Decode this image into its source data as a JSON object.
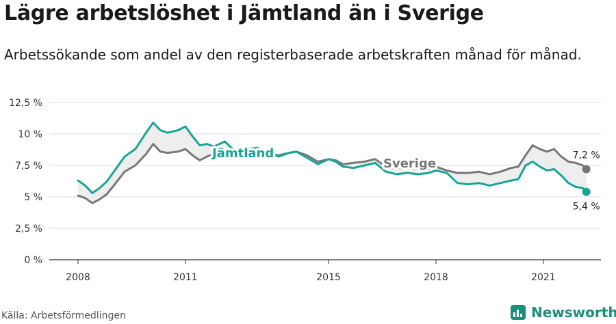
{
  "header": {
    "title": "Lägre arbetslöshet i Jämtland än i Sverige",
    "subtitle": "Arbetssökande som andel av den registerbaserade arbetskraften månad för månad."
  },
  "footer": {
    "source": "Källa: Arbetsförmedlingen",
    "brand": "Newsworthy"
  },
  "colors": {
    "jamtland": "#16a596",
    "sverige": "#777777",
    "grid": "#dddddd",
    "band": "#eeeeee"
  },
  "chart_data": {
    "type": "line",
    "xlim": [
      2008,
      2022.3
    ],
    "ylim": [
      0,
      12.5
    ],
    "yticks": [
      0,
      2.5,
      5,
      7.5,
      10,
      12.5
    ],
    "ytick_labels": [
      "0 %",
      "2,5 %",
      "5 %",
      "7,5 %",
      "10 %",
      "12,5 %"
    ],
    "xticks": [
      2008,
      2011,
      2015,
      2018,
      2021
    ],
    "xtick_labels": [
      "2008",
      "2011",
      "2015",
      "2018",
      "2021"
    ],
    "grid": true,
    "series": [
      {
        "name": "Jämtland",
        "end_label": "5,4 %",
        "points": [
          [
            2008.0,
            6.3
          ],
          [
            2008.2,
            5.9
          ],
          [
            2008.4,
            5.3
          ],
          [
            2008.6,
            5.7
          ],
          [
            2008.8,
            6.2
          ],
          [
            2009.0,
            7.0
          ],
          [
            2009.3,
            8.2
          ],
          [
            2009.6,
            8.8
          ],
          [
            2009.9,
            10.1
          ],
          [
            2010.1,
            10.9
          ],
          [
            2010.3,
            10.3
          ],
          [
            2010.5,
            10.1
          ],
          [
            2010.8,
            10.3
          ],
          [
            2011.0,
            10.6
          ],
          [
            2011.2,
            9.8
          ],
          [
            2011.4,
            9.1
          ],
          [
            2011.6,
            9.2
          ],
          [
            2011.8,
            9.0
          ],
          [
            2012.1,
            9.4
          ],
          [
            2012.4,
            8.6
          ],
          [
            2012.7,
            8.8
          ],
          [
            2013.0,
            8.9
          ],
          [
            2013.3,
            8.6
          ],
          [
            2013.6,
            8.2
          ],
          [
            2013.9,
            8.5
          ],
          [
            2014.1,
            8.6
          ],
          [
            2014.4,
            8.1
          ],
          [
            2014.7,
            7.6
          ],
          [
            2015.0,
            8.0
          ],
          [
            2015.2,
            7.8
          ],
          [
            2015.4,
            7.4
          ],
          [
            2015.7,
            7.3
          ],
          [
            2016.0,
            7.5
          ],
          [
            2016.3,
            7.7
          ],
          [
            2016.6,
            7.0
          ],
          [
            2016.9,
            6.8
          ],
          [
            2017.2,
            6.9
          ],
          [
            2017.5,
            6.8
          ],
          [
            2017.8,
            6.9
          ],
          [
            2018.0,
            7.1
          ],
          [
            2018.3,
            6.9
          ],
          [
            2018.6,
            6.1
          ],
          [
            2018.9,
            6.0
          ],
          [
            2019.2,
            6.1
          ],
          [
            2019.5,
            5.9
          ],
          [
            2019.8,
            6.1
          ],
          [
            2020.1,
            6.3
          ],
          [
            2020.3,
            6.4
          ],
          [
            2020.5,
            7.5
          ],
          [
            2020.7,
            7.8
          ],
          [
            2020.9,
            7.4
          ],
          [
            2021.1,
            7.1
          ],
          [
            2021.3,
            7.2
          ],
          [
            2021.5,
            6.7
          ],
          [
            2021.7,
            6.1
          ],
          [
            2021.9,
            5.8
          ],
          [
            2022.1,
            5.7
          ],
          [
            2022.2,
            5.4
          ]
        ]
      },
      {
        "name": "Sverige",
        "end_label": "7,2 %",
        "points": [
          [
            2008.0,
            5.1
          ],
          [
            2008.2,
            4.9
          ],
          [
            2008.4,
            4.5
          ],
          [
            2008.6,
            4.8
          ],
          [
            2008.8,
            5.2
          ],
          [
            2009.0,
            5.9
          ],
          [
            2009.3,
            7.0
          ],
          [
            2009.6,
            7.5
          ],
          [
            2009.9,
            8.4
          ],
          [
            2010.1,
            9.2
          ],
          [
            2010.3,
            8.6
          ],
          [
            2010.5,
            8.5
          ],
          [
            2010.8,
            8.6
          ],
          [
            2011.0,
            8.8
          ],
          [
            2011.2,
            8.3
          ],
          [
            2011.4,
            7.9
          ],
          [
            2011.6,
            8.2
          ],
          [
            2011.8,
            8.4
          ],
          [
            2012.1,
            8.5
          ],
          [
            2012.4,
            8.2
          ],
          [
            2012.7,
            8.4
          ],
          [
            2013.0,
            8.6
          ],
          [
            2013.3,
            8.5
          ],
          [
            2013.6,
            8.3
          ],
          [
            2013.9,
            8.5
          ],
          [
            2014.1,
            8.6
          ],
          [
            2014.4,
            8.3
          ],
          [
            2014.7,
            7.8
          ],
          [
            2015.0,
            8.0
          ],
          [
            2015.2,
            7.9
          ],
          [
            2015.4,
            7.6
          ],
          [
            2015.7,
            7.7
          ],
          [
            2016.0,
            7.8
          ],
          [
            2016.3,
            8.0
          ],
          [
            2016.6,
            7.4
          ],
          [
            2016.9,
            7.3
          ],
          [
            2017.2,
            7.3
          ],
          [
            2017.5,
            7.2
          ],
          [
            2017.8,
            7.2
          ],
          [
            2018.0,
            7.4
          ],
          [
            2018.3,
            7.1
          ],
          [
            2018.6,
            6.9
          ],
          [
            2018.9,
            6.9
          ],
          [
            2019.2,
            7.0
          ],
          [
            2019.5,
            6.8
          ],
          [
            2019.8,
            7.0
          ],
          [
            2020.1,
            7.3
          ],
          [
            2020.3,
            7.4
          ],
          [
            2020.5,
            8.3
          ],
          [
            2020.7,
            9.1
          ],
          [
            2020.9,
            8.8
          ],
          [
            2021.1,
            8.6
          ],
          [
            2021.3,
            8.8
          ],
          [
            2021.5,
            8.2
          ],
          [
            2021.7,
            7.8
          ],
          [
            2021.9,
            7.7
          ],
          [
            2022.1,
            7.5
          ],
          [
            2022.2,
            7.2
          ]
        ]
      }
    ]
  }
}
